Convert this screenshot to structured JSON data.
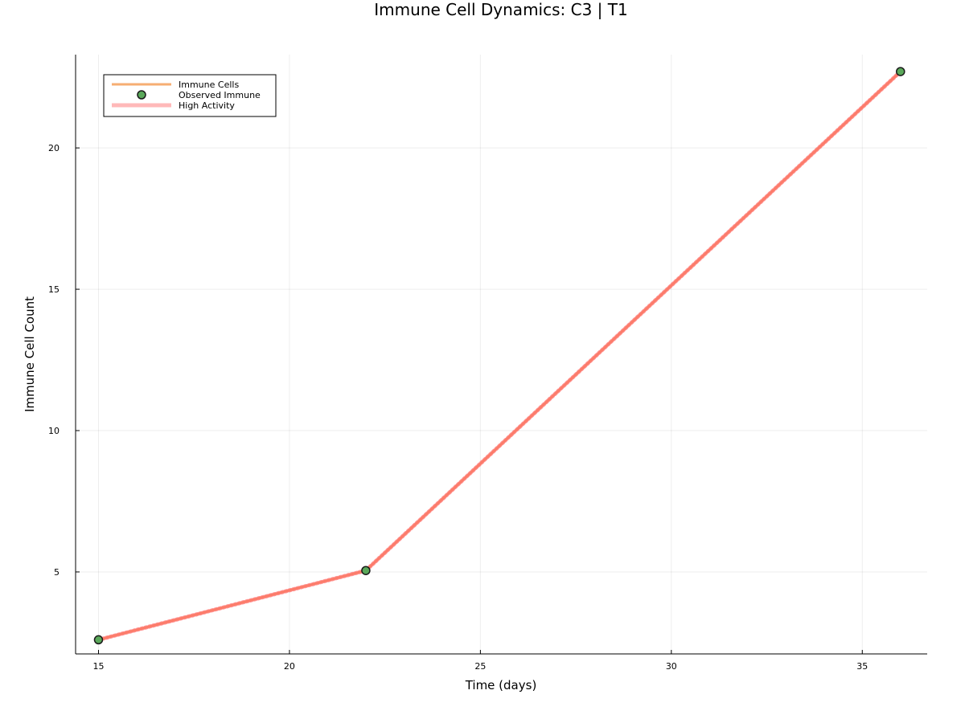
{
  "chart_data": {
    "type": "line",
    "title": "Immune Cell Dynamics: C3 | T1",
    "xlabel": "Time (days)",
    "ylabel": "Immune Cell Count",
    "xlim": [
      14.4,
      36.7
    ],
    "ylim": [
      2.1,
      23.3
    ],
    "xticks": [
      15,
      20,
      25,
      30,
      35
    ],
    "yticks": [
      5,
      10,
      15,
      20
    ],
    "grid": true,
    "legend_position": "top-left",
    "series": [
      {
        "name": "Immune Cells",
        "kind": "line",
        "color": "#f5a05a",
        "x": [
          15,
          22,
          36
        ],
        "y": [
          2.6,
          5.05,
          22.7
        ]
      },
      {
        "name": "Observed Immune",
        "kind": "scatter",
        "color": "#5aa85a",
        "x": [
          15,
          22,
          36
        ],
        "y": [
          2.6,
          5.05,
          22.7
        ]
      },
      {
        "name": "High Activity",
        "kind": "line",
        "color": "#ff6666",
        "x": [
          15,
          22,
          36
        ],
        "y": [
          2.6,
          5.05,
          22.7
        ]
      }
    ]
  }
}
